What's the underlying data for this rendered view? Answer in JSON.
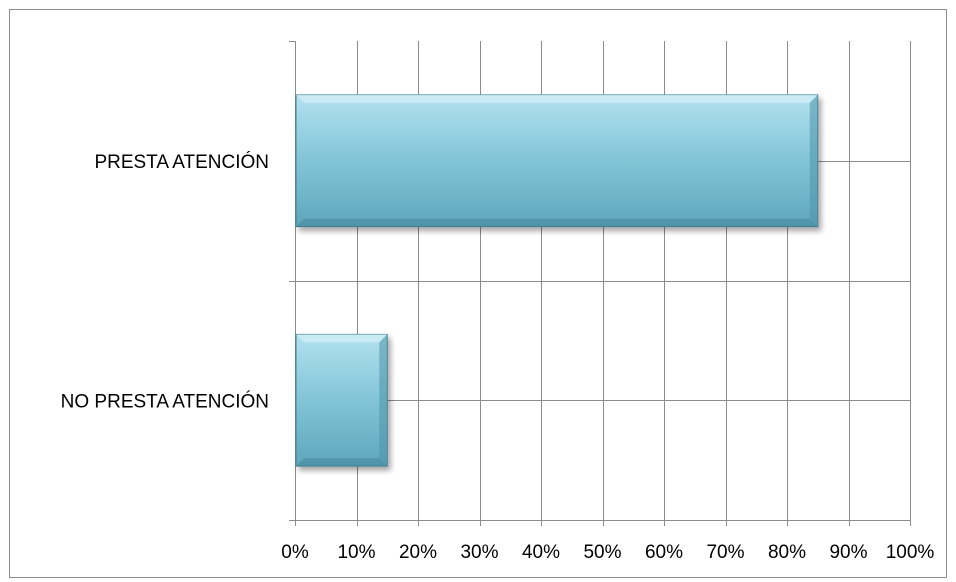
{
  "chart_data": {
    "type": "bar",
    "orientation": "horizontal",
    "title": "",
    "xlabel": "",
    "ylabel": "",
    "categories": [
      "PRESTA ATENCIÓN",
      "NO PRESTA ATENCIÓN"
    ],
    "values": [
      0.85,
      0.15
    ],
    "xlim": [
      0,
      1
    ],
    "x_ticks": [
      0,
      0.1,
      0.2,
      0.3,
      0.4,
      0.5,
      0.6,
      0.7,
      0.8,
      0.9,
      1.0
    ],
    "x_tick_labels": [
      "0%",
      "10%",
      "20%",
      "30%",
      "40%",
      "50%",
      "60%",
      "70%",
      "80%",
      "90%",
      "100%"
    ],
    "grid": true,
    "legend": "none",
    "bar_color": "#7fc3d6",
    "bar_edge_color": "#3f7f93"
  }
}
